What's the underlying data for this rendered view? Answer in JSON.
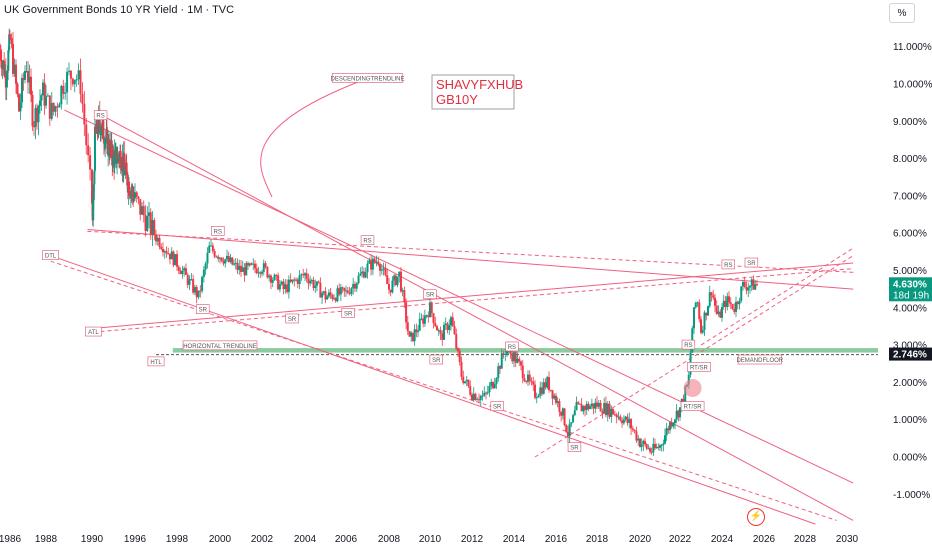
{
  "header": {
    "title": "UK Government Bonds 10 YR Yield · 1M · TVC",
    "unit_button": "%"
  },
  "brand_box": {
    "line1": "SHAVYFXHUB",
    "line2": "GB10Y"
  },
  "price_badges": [
    {
      "value": "4.630%",
      "sub": "18d 19h",
      "color": "#089981",
      "y_value": 4.63
    },
    {
      "value": "2.746%",
      "sub": "",
      "color": "#131722",
      "y_value": 2.746
    }
  ],
  "annotations": [
    {
      "text": "DESCENDINGTRENDLINE",
      "year": 2007.0,
      "pct": 10.15
    },
    {
      "text": "RS",
      "year": 1991.2,
      "pct": 9.15
    },
    {
      "text": "RS",
      "year": 1999.9,
      "pct": 6.05
    },
    {
      "text": "RS",
      "year": 2007.0,
      "pct": 5.8
    },
    {
      "text": "RS",
      "year": 2013.9,
      "pct": 2.95
    },
    {
      "text": "RS",
      "year": 2022.4,
      "pct": 3.0
    },
    {
      "text": "RS",
      "year": 2024.3,
      "pct": 5.15
    },
    {
      "text": "SR",
      "year": 2025.4,
      "pct": 5.2
    },
    {
      "text": "SR",
      "year": 1999.2,
      "pct": 3.95
    },
    {
      "text": "SR",
      "year": 2003.4,
      "pct": 3.7
    },
    {
      "text": "SR",
      "year": 2006.1,
      "pct": 3.85
    },
    {
      "text": "SR",
      "year": 2010.0,
      "pct": 4.35
    },
    {
      "text": "SR",
      "year": 2010.3,
      "pct": 2.6
    },
    {
      "text": "SR",
      "year": 2013.2,
      "pct": 1.35
    },
    {
      "text": "SR",
      "year": 2016.9,
      "pct": 0.25
    },
    {
      "text": "RT/SR",
      "year": 2022.9,
      "pct": 2.4
    },
    {
      "text": "RT/SR",
      "year": 2022.6,
      "pct": 1.35
    },
    {
      "text": "DTL",
      "year": 1988.2,
      "pct": 5.4
    },
    {
      "text": "ATL",
      "year": 1990.2,
      "pct": 3.35
    },
    {
      "text": "HTL",
      "year": 1997.0,
      "pct": 2.55
    },
    {
      "text": "HORIZONTAL TRENDLINE",
      "year": 2000.0,
      "pct": 2.98
    },
    {
      "text": "DEMANDFLOOR",
      "year": 2025.8,
      "pct": 2.6
    }
  ],
  "chart_data": {
    "type": "candlestick",
    "title": "UK Government Bonds 10 YR Yield",
    "timeframe": "1M",
    "source": "TVC",
    "unit": "%",
    "x_tick_labels": [
      "1986",
      "1988",
      "1990",
      "1996",
      "1998",
      "2000",
      "2002",
      "2004",
      "2006",
      "2008",
      "2010",
      "2012",
      "2014",
      "2016",
      "2018",
      "2020",
      "2022",
      "2024",
      "2026",
      "2028",
      "2030"
    ],
    "y_tick_labels": [
      "11.000%",
      "10.000%",
      "9.000%",
      "8.000%",
      "7.000%",
      "6.000%",
      "5.000%",
      "4.000%",
      "3.000%",
      "2.000%",
      "1.000%",
      "0.000%",
      "-1.000%"
    ],
    "y_ticks": [
      11,
      10,
      9,
      8,
      7,
      6,
      5,
      4,
      3,
      2,
      1,
      0,
      -1
    ],
    "ylim": [
      -1.7,
      12.0
    ],
    "grid": false,
    "price_path": [
      [
        "1985.0",
        10.9
      ],
      [
        "1985.6",
        10.2
      ],
      [
        "1986.0",
        11.2
      ],
      [
        "1986.5",
        9.3
      ],
      [
        "1986.9",
        10.6
      ],
      [
        "1987.3",
        9.0
      ],
      [
        "1987.8",
        9.8
      ],
      [
        "1988.3",
        9.2
      ],
      [
        "1988.8",
        10.1
      ],
      [
        "1989.2",
        10.3
      ],
      [
        "1989.5",
        10.0
      ],
      [
        "1990.1",
        6.2
      ],
      [
        "1990.4",
        8.5
      ],
      [
        "1991.0",
        9.0
      ],
      [
        "1992.0",
        8.5
      ],
      [
        "1993.0",
        8.0
      ],
      [
        "1994.0",
        8.1
      ],
      [
        "1995.0",
        7.4
      ],
      [
        "1996.0",
        6.9
      ],
      [
        "1997.0",
        5.9
      ],
      [
        "1998.0",
        5.2
      ],
      [
        "1999.0",
        4.3
      ],
      [
        "1999.5",
        5.6
      ],
      [
        "2000.0",
        5.4
      ],
      [
        "2000.5",
        5.2
      ],
      [
        "2001.0",
        5.0
      ],
      [
        "2002.0",
        5.1
      ],
      [
        "2003.0",
        4.5
      ],
      [
        "2004.0",
        4.9
      ],
      [
        "2005.0",
        4.3
      ],
      [
        "2006.0",
        4.4
      ],
      [
        "2007.0",
        5.1
      ],
      [
        "2007.5",
        5.3
      ],
      [
        "2008.0",
        4.5
      ],
      [
        "2008.5",
        4.9
      ],
      [
        "2009.0",
        3.1
      ],
      [
        "2010.0",
        4.0
      ],
      [
        "2010.5",
        3.2
      ],
      [
        "2011.0",
        3.7
      ],
      [
        "2011.5",
        2.2
      ],
      [
        "2012.0",
        1.7
      ],
      [
        "2012.6",
        1.6
      ],
      [
        "2013.0",
        2.0
      ],
      [
        "2013.6",
        2.9
      ],
      [
        "2014.0",
        2.7
      ],
      [
        "2015.0",
        1.7
      ],
      [
        "2015.6",
        2.0
      ],
      [
        "2016.3",
        1.2
      ],
      [
        "2016.6",
        0.6
      ],
      [
        "2017.0",
        1.3
      ],
      [
        "2018.0",
        1.4
      ],
      [
        "2018.8",
        1.2
      ],
      [
        "2019.5",
        0.9
      ],
      [
        "2020.0",
        0.4
      ],
      [
        "2020.6",
        0.15
      ],
      [
        "2021.0",
        0.3
      ],
      [
        "2021.5",
        0.9
      ],
      [
        "2022.0",
        1.3
      ],
      [
        "2022.4",
        2.0
      ],
      [
        "2022.6",
        3.6
      ],
      [
        "2022.8",
        4.3
      ],
      [
        "2023.0",
        3.4
      ],
      [
        "2023.5",
        4.5
      ],
      [
        "2023.8",
        3.7
      ],
      [
        "2024.2",
        4.2
      ],
      [
        "2024.6",
        4.0
      ],
      [
        "2025.0",
        4.6
      ],
      [
        "2025.4",
        4.6
      ],
      [
        "2025.7",
        4.63
      ]
    ],
    "trendlines": [
      {
        "name": "DESCENDINGTRENDLINE",
        "from": [
          1988.8,
          9.3
        ],
        "to": [
          2030.3,
          -0.7
        ],
        "color": "#f06080",
        "style": "solid"
      },
      {
        "name": "RS line",
        "from": [
          1991.0,
          9.2
        ],
        "to": [
          2030.3,
          -1.7
        ],
        "color": "#f06080",
        "style": "solid"
      },
      {
        "name": "DTL",
        "from": [
          1988.2,
          5.4
        ],
        "to": [
          2028.5,
          -1.8
        ],
        "color": "#f06080",
        "style": "solid"
      },
      {
        "name": "DTL dashed",
        "from": [
          1988.2,
          5.25
        ],
        "to": [
          2029.5,
          -1.7
        ],
        "color": "#f06080",
        "style": "dashed"
      },
      {
        "name": "upper pink",
        "from": [
          1989.8,
          6.1
        ],
        "to": [
          2030.3,
          4.5
        ],
        "color": "#f06080",
        "style": "solid"
      },
      {
        "name": "upper dashed",
        "from": [
          1989.8,
          6.05
        ],
        "to": [
          2030.3,
          4.95
        ],
        "color": "#f06080",
        "style": "dashed"
      },
      {
        "name": "ATL",
        "from": [
          1990.2,
          3.45
        ],
        "to": [
          2030.3,
          5.2
        ],
        "color": "#f06080",
        "style": "solid"
      },
      {
        "name": "ATL dashed",
        "from": [
          1990.2,
          3.35
        ],
        "to": [
          2030.3,
          5.05
        ],
        "color": "#f06080",
        "style": "dashed"
      },
      {
        "name": "rising dashed",
        "from": [
          2015.0,
          0.0
        ],
        "to": [
          2030.3,
          5.4
        ],
        "color": "#f06080",
        "style": "dashed"
      },
      {
        "name": "recent dashed",
        "from": [
          2023.0,
          3.0
        ],
        "to": [
          2030.3,
          5.6
        ],
        "color": "#f06080",
        "style": "dashed"
      }
    ],
    "zones": [
      {
        "name": "HORIZONTAL TRENDLINE",
        "from_year": 1997.8,
        "to_year": 2030.3,
        "low": 2.8,
        "high": 2.92,
        "color": "#2e9e50"
      },
      {
        "name": "DEMANDFLOOR",
        "from_year": 1997.0,
        "to_year": 2030.3,
        "value": 2.746,
        "color": "#555555",
        "style": "dashed"
      }
    ]
  }
}
